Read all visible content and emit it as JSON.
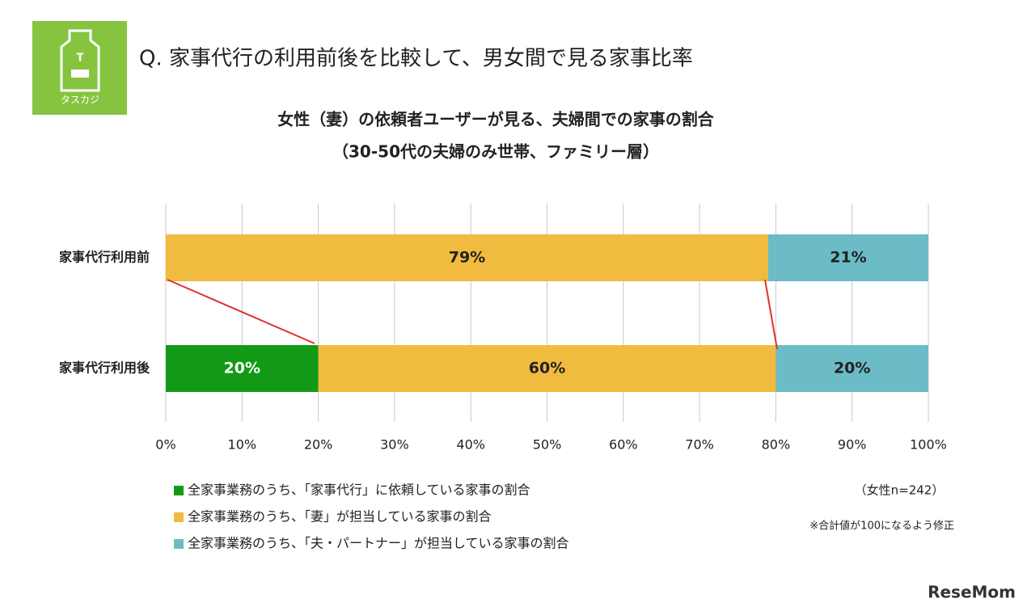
{
  "header": {
    "question": "Q. 家事代行の利用前後を比較して、男女間で見る家事比率",
    "logo_letter": "T",
    "logo_text": "タスカジ"
  },
  "chart_data": {
    "type": "stacked-bar-horizontal",
    "title": "女性（妻）の依頼者ユーザーが見る、夫婦間での家事の割合",
    "subtitle": "（30-50代の夫婦のみ世帯、ファミリー層）",
    "categories": [
      "家事代行利用前",
      "家事代行利用後"
    ],
    "series": [
      {
        "name": "全家事業務のうち、「家事代行」に依頼している家事の割合",
        "color": "#129a16",
        "values": [
          null,
          20
        ],
        "value_labels": [
          null,
          "20%"
        ]
      },
      {
        "name": "全家事業務のうち、「妻」が担当している家事の割合",
        "color": "#f0bb3e",
        "values": [
          79,
          60
        ],
        "value_labels": [
          "79%",
          "60%"
        ]
      },
      {
        "name": "全家事業務のうち、「夫・パートナー」が担当している家事の割合",
        "color": "#6bbcc6",
        "values": [
          21,
          20
        ],
        "value_labels": [
          "21%",
          "20%"
        ]
      }
    ],
    "xlim": [
      0,
      100
    ],
    "xticks": [
      {
        "value": 0,
        "label": "0%"
      },
      {
        "value": 10,
        "label": "10%"
      },
      {
        "value": 20,
        "label": "20%"
      },
      {
        "value": 30,
        "label": "30%"
      },
      {
        "value": 40,
        "label": "40%"
      },
      {
        "value": 50,
        "label": "50%"
      },
      {
        "value": 60,
        "label": "60%"
      },
      {
        "value": 70,
        "label": "70%"
      },
      {
        "value": 80,
        "label": "80%"
      },
      {
        "value": 90,
        "label": "90%"
      },
      {
        "value": 100,
        "label": "100%"
      }
    ],
    "grid": true,
    "sample_note": "（女性n=242）",
    "footnote": "※合計値が100になるよう修正"
  },
  "watermark": "ReseMom"
}
